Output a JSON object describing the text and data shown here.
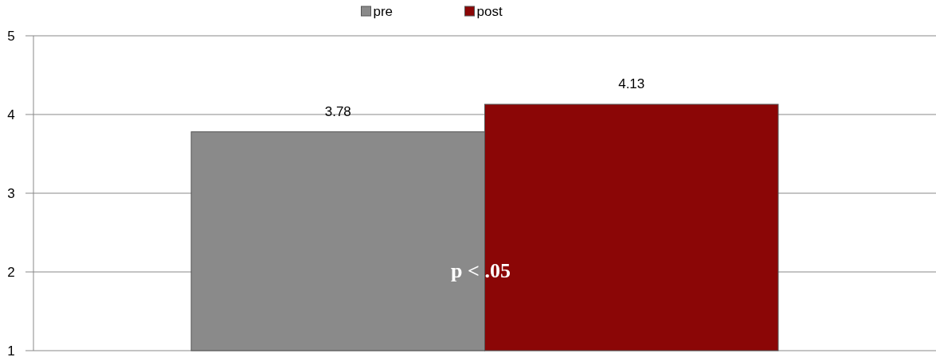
{
  "chart_data": {
    "type": "bar",
    "categories": [
      null
    ],
    "series": [
      {
        "name": "pre",
        "color": "#8a8a8a",
        "values": [
          3.78
        ]
      },
      {
        "name": "post",
        "color": "#8b0606",
        "values": [
          4.13
        ]
      }
    ],
    "ylim": [
      1,
      5
    ],
    "yticks": [
      1,
      2,
      3,
      4,
      5
    ],
    "grid": "y",
    "legend": "top",
    "data_labels": true,
    "annotations": [
      "p < .05"
    ]
  }
}
